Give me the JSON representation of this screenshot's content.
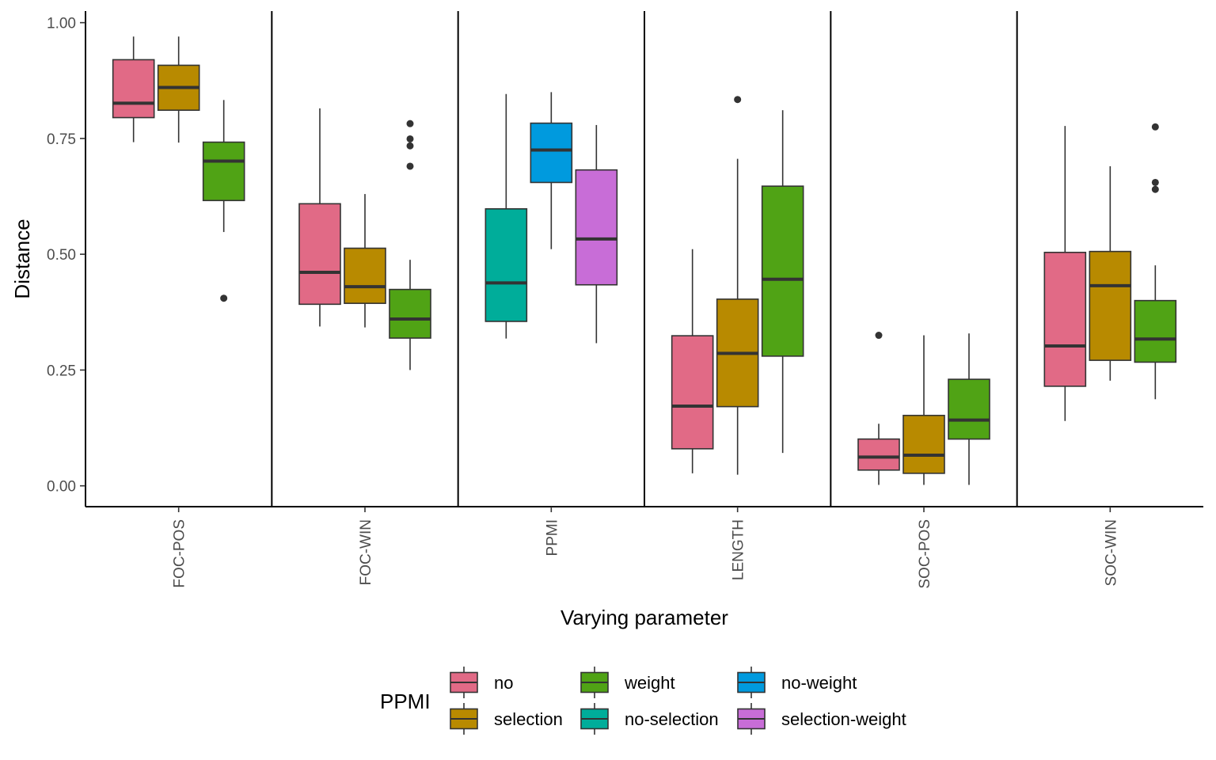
{
  "chart_data": {
    "type": "box",
    "xlabel": "Varying parameter",
    "ylabel": "Distance",
    "ylim": [
      -0.045,
      1.025
    ],
    "yticks": [
      0.0,
      0.25,
      0.5,
      0.75,
      1.0
    ],
    "ytick_labels": [
      "0.00",
      "0.25",
      "0.50",
      "0.75",
      "1.00"
    ],
    "categories": [
      "FOC-POS",
      "FOC-WIN",
      "PPMI",
      "LENGTH",
      "SOC-POS",
      "SOC-WIN"
    ],
    "legend": {
      "title": "PPMI",
      "placement": "bottom",
      "entries": [
        {
          "name": "no",
          "color": "#E16A86"
        },
        {
          "name": "selection",
          "color": "#B88A00"
        },
        {
          "name": "weight",
          "color": "#50A315"
        },
        {
          "name": "no-selection",
          "color": "#00AD9A"
        },
        {
          "name": "no-weight",
          "color": "#009ADE"
        },
        {
          "name": "selection-weight",
          "color": "#C86DD7"
        }
      ]
    },
    "groups": [
      {
        "category": "FOC-POS",
        "boxes": [
          {
            "series": "no",
            "whisker_low": 0.742,
            "q1": 0.795,
            "median": 0.826,
            "q3": 0.92,
            "whisker_high": 0.97,
            "outliers": []
          },
          {
            "series": "selection",
            "whisker_low": 0.741,
            "q1": 0.811,
            "median": 0.86,
            "q3": 0.908,
            "whisker_high": 0.97,
            "outliers": []
          },
          {
            "series": "weight",
            "whisker_low": 0.548,
            "q1": 0.616,
            "median": 0.701,
            "q3": 0.742,
            "whisker_high": 0.833,
            "outliers": [
              0.405
            ]
          }
        ]
      },
      {
        "category": "FOC-WIN",
        "boxes": [
          {
            "series": "no",
            "whisker_low": 0.344,
            "q1": 0.392,
            "median": 0.461,
            "q3": 0.609,
            "whisker_high": 0.815,
            "outliers": []
          },
          {
            "series": "selection",
            "whisker_low": 0.342,
            "q1": 0.394,
            "median": 0.43,
            "q3": 0.513,
            "whisker_high": 0.63,
            "outliers": []
          },
          {
            "series": "weight",
            "whisker_low": 0.25,
            "q1": 0.319,
            "median": 0.36,
            "q3": 0.424,
            "whisker_high": 0.488,
            "outliers": [
              0.69,
              0.734,
              0.749,
              0.782
            ]
          }
        ]
      },
      {
        "category": "PPMI",
        "boxes": [
          {
            "series": "no-selection",
            "whisker_low": 0.318,
            "q1": 0.355,
            "median": 0.438,
            "q3": 0.598,
            "whisker_high": 0.846,
            "outliers": []
          },
          {
            "series": "no-weight",
            "whisker_low": 0.511,
            "q1": 0.655,
            "median": 0.725,
            "q3": 0.783,
            "whisker_high": 0.85,
            "outliers": []
          },
          {
            "series": "selection-weight",
            "whisker_low": 0.308,
            "q1": 0.434,
            "median": 0.533,
            "q3": 0.682,
            "whisker_high": 0.779,
            "outliers": []
          }
        ]
      },
      {
        "category": "LENGTH",
        "boxes": [
          {
            "series": "no",
            "whisker_low": 0.027,
            "q1": 0.08,
            "median": 0.172,
            "q3": 0.324,
            "whisker_high": 0.511,
            "outliers": []
          },
          {
            "series": "selection",
            "whisker_low": 0.024,
            "q1": 0.171,
            "median": 0.286,
            "q3": 0.403,
            "whisker_high": 0.706,
            "outliers": [
              0.834
            ]
          },
          {
            "series": "weight",
            "whisker_low": 0.071,
            "q1": 0.28,
            "median": 0.446,
            "q3": 0.647,
            "whisker_high": 0.811,
            "outliers": []
          }
        ]
      },
      {
        "category": "SOC-POS",
        "boxes": [
          {
            "series": "no",
            "whisker_low": 0.002,
            "q1": 0.034,
            "median": 0.062,
            "q3": 0.101,
            "whisker_high": 0.134,
            "outliers": [
              0.325
            ]
          },
          {
            "series": "selection",
            "whisker_low": 0.002,
            "q1": 0.027,
            "median": 0.066,
            "q3": 0.152,
            "whisker_high": 0.325,
            "outliers": []
          },
          {
            "series": "weight",
            "whisker_low": 0.002,
            "q1": 0.101,
            "median": 0.142,
            "q3": 0.23,
            "whisker_high": 0.329,
            "outliers": []
          }
        ]
      },
      {
        "category": "SOC-WIN",
        "boxes": [
          {
            "series": "no",
            "whisker_low": 0.14,
            "q1": 0.215,
            "median": 0.302,
            "q3": 0.504,
            "whisker_high": 0.777,
            "outliers": []
          },
          {
            "series": "selection",
            "whisker_low": 0.227,
            "q1": 0.271,
            "median": 0.432,
            "q3": 0.506,
            "whisker_high": 0.69,
            "outliers": []
          },
          {
            "series": "weight",
            "whisker_low": 0.187,
            "q1": 0.267,
            "median": 0.317,
            "q3": 0.4,
            "whisker_high": 0.476,
            "outliers": [
              0.64,
              0.655,
              0.775
            ]
          }
        ]
      }
    ]
  }
}
